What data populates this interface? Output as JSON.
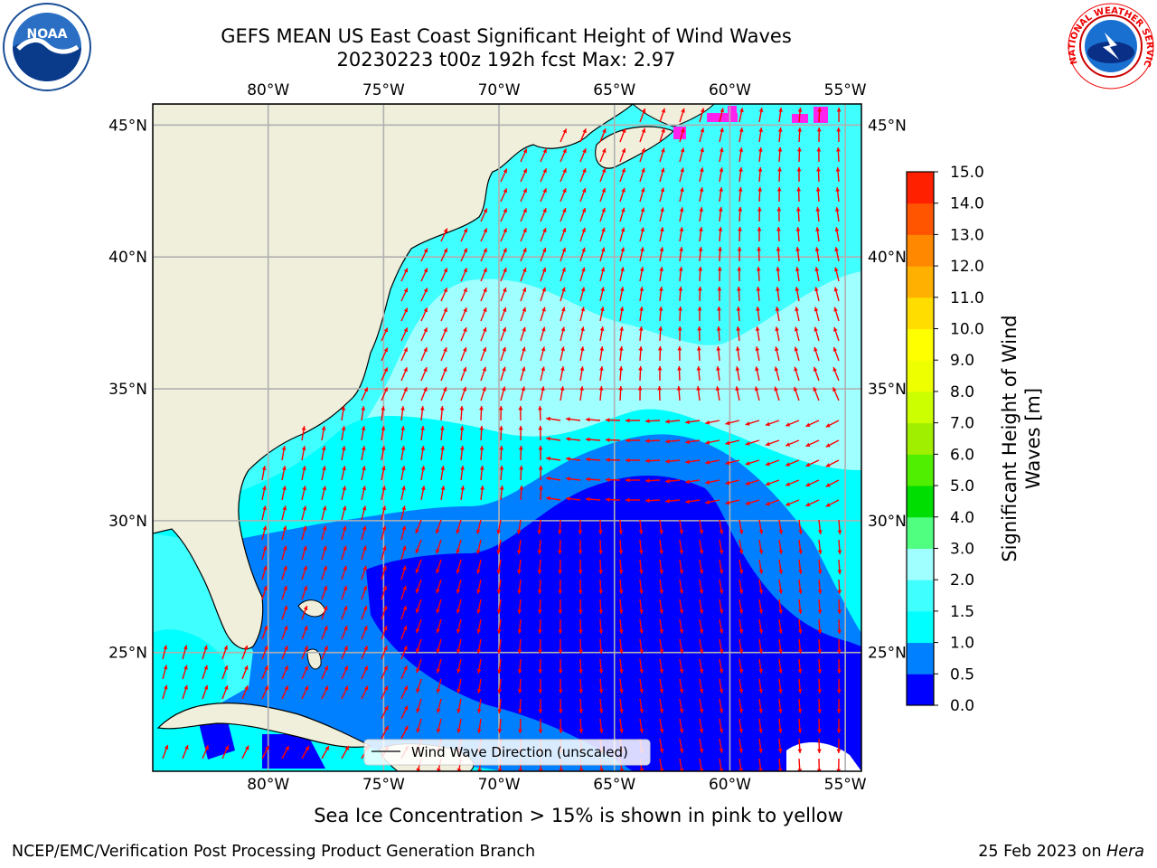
{
  "header": {
    "title_line1": "GEFS MEAN US East Coast Significant Height of Wind Waves",
    "title_line2": "20230223 t00z 192h fcst   Max: 2.97"
  },
  "logos": {
    "left": {
      "icon": "noaa-logo-icon",
      "text": "NOAA"
    },
    "right": {
      "icon": "nws-logo-icon",
      "text": "NATIONAL WEATHER SERVICE"
    }
  },
  "map": {
    "lon_labels": [
      "80°W",
      "75°W",
      "70°W",
      "65°W",
      "60°W",
      "55°W"
    ],
    "lat_labels": [
      "45°N",
      "40°N",
      "35°N",
      "30°N",
      "25°N"
    ],
    "lon_values": [
      -80,
      -75,
      -70,
      -65,
      -60,
      -55
    ],
    "lat_values": [
      45,
      40,
      35,
      30,
      25
    ],
    "extent": {
      "lon": [
        -85,
        -54.3
      ],
      "lat": [
        20.5,
        45.8
      ]
    },
    "legend_label": "Wind Wave Direction (unscaled)",
    "colors": {
      "land": "#efefdc",
      "arrow": "#ff0000",
      "grid": "#b0b0b0",
      "ice": "#ff22ee"
    }
  },
  "colorbar": {
    "label": "Significant Height of Wind Waves [m]",
    "label_line1": "Significant Height of Wind",
    "label_line2": "Waves [m]",
    "ticks": [
      "15.0",
      "14.0",
      "13.0",
      "12.0",
      "11.0",
      "10.0",
      "9.0",
      "8.0",
      "7.0",
      "6.0",
      "5.0",
      "4.0",
      "3.0",
      "2.0",
      "1.5",
      "1.0",
      "0.5",
      "0.0"
    ],
    "levels": [
      0.0,
      0.5,
      1.0,
      1.5,
      2.0,
      3.0,
      4.0,
      5.0,
      6.0,
      7.0,
      8.0,
      9.0,
      10.0,
      11.0,
      12.0,
      13.0,
      14.0,
      15.0
    ],
    "colors": [
      "#0000ff",
      "#0080ff",
      "#00ffff",
      "#40ffff",
      "#a0ffff",
      "#50ff80",
      "#00dd00",
      "#50ee00",
      "#a0ee00",
      "#ccff00",
      "#eeff00",
      "#ffff00",
      "#ffdd00",
      "#ffb000",
      "#ff8800",
      "#ff5500",
      "#ff2000"
    ]
  },
  "caption": "Sea Ice Concentration > 15% is shown in pink to yellow",
  "footer": {
    "left": "NCEP/EMC/Verification Post Processing Product Generation Branch",
    "right_prefix": "25 Feb 2023 on ",
    "right_host": "Hera"
  }
}
